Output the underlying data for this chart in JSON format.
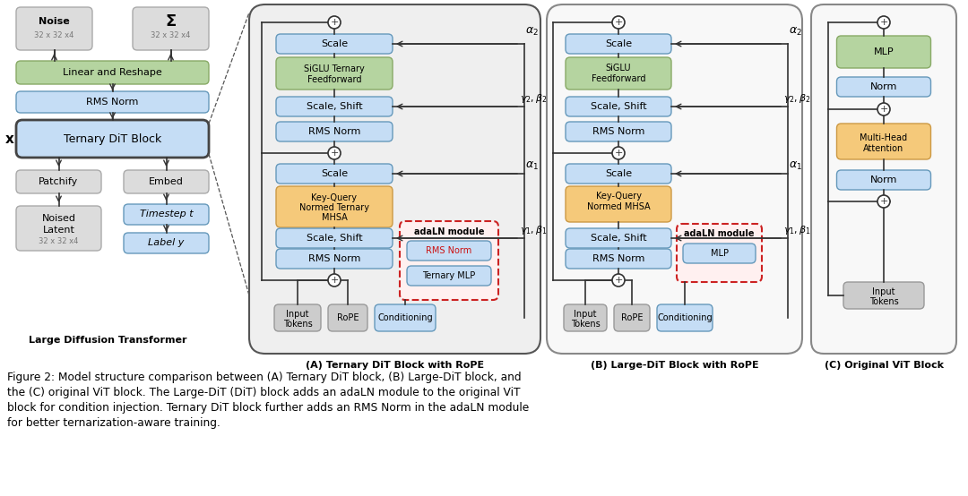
{
  "bg_color": "#ffffff",
  "figure_caption_line1": "Figure 2: Model structure comparison between (A) Ternary DiT block, (B) Large-DiT block, and",
  "figure_caption_line2": "the (C) original ViT block. The Large-DiT (DiT) block adds an adaLN module to the original ViT",
  "figure_caption_line3": "block for condition injection. Ternary DiT block further adds an RMS Norm in the adaLN module",
  "figure_caption_line4": "for better ternarization-aware training.",
  "block_A_title": "(A) Ternary DiT Block with RoPE",
  "block_B_title": "(B) Large-DiT Block with RoPE",
  "block_C_title": "(C) Original ViT Block",
  "ldt_title": "Large Diffusion Transformer",
  "color_blue_light": "#c5ddf5",
  "color_green_light": "#b5d4a0",
  "color_orange_light": "#f5c97a",
  "color_gray_light": "#cccccc",
  "color_gray_box": "#dcdcdc",
  "color_red_dashed": "#cc2222",
  "color_panel_bg": "#efefef",
  "color_panel_border": "#555555"
}
